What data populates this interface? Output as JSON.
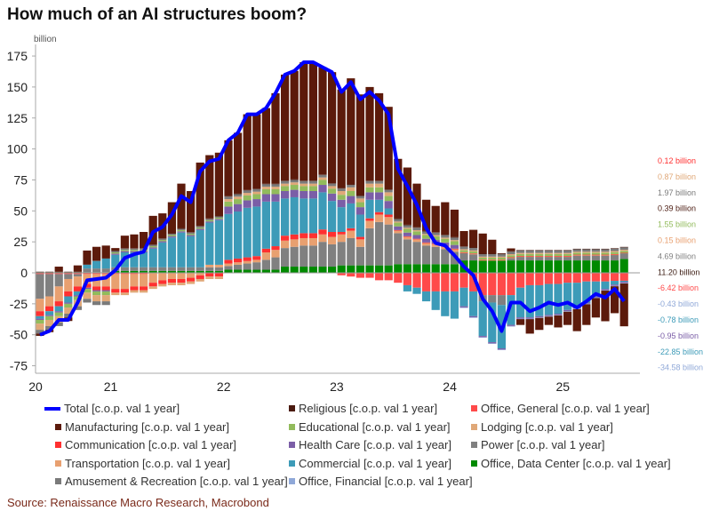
{
  "title": "How much of an AI structures boom?",
  "source": "Source: Renaissance Macro Research, Macrobond",
  "chart_data": {
    "type": "bar",
    "stacked": true,
    "title": "How much of an AI structures boom?",
    "ylabel": "billion",
    "ylim": [
      -75,
      175
    ],
    "yticks": [
      175,
      150,
      125,
      100,
      75,
      50,
      25,
      0,
      -25,
      -50,
      -75
    ],
    "x_start": "2020-05",
    "x_end": "2025-07",
    "frequency": "monthly",
    "xtick_labels": [
      {
        "label": "20",
        "month": "2020-01"
      },
      {
        "label": "21",
        "month": "2021-01"
      },
      {
        "label": "22",
        "month": "2022-01"
      },
      {
        "label": "23",
        "month": "2023-01"
      },
      {
        "label": "24",
        "month": "2024-01"
      },
      {
        "label": "25",
        "month": "2025-01"
      }
    ],
    "grid": false,
    "legend_placement": "bottom",
    "line": {
      "name": "Total [c.o.p. val 1 year]",
      "color": "#0000ff",
      "values": [
        -50,
        -47,
        -38,
        -38,
        -24,
        -6,
        -5,
        -4,
        2,
        12,
        15,
        17,
        33,
        37,
        47,
        62,
        57,
        82,
        90,
        92,
        107,
        113,
        128,
        128,
        133,
        145,
        160,
        163,
        170,
        170,
        166,
        162,
        146,
        154,
        140,
        146,
        139,
        128,
        84,
        70,
        55,
        36,
        24,
        22,
        14,
        5,
        -2,
        -21,
        -31,
        -47,
        -24,
        -24,
        -31,
        -28,
        -24,
        -26,
        -24,
        -28,
        -23,
        -17,
        -20,
        -13,
        -22.85
      ]
    },
    "series": [
      {
        "name": "Office, Data Center [c.o.p. val 1 year]",
        "color": "#008a00",
        "values": [
          0.5,
          0.5,
          0.5,
          0.5,
          0.5,
          0.5,
          0.5,
          0.5,
          1.5,
          1.5,
          1.5,
          1.5,
          1.5,
          1.5,
          1.5,
          1.5,
          1.5,
          1.5,
          1.5,
          1.5,
          2.5,
          2.5,
          2.5,
          2.5,
          2.5,
          2.5,
          5,
          5,
          5,
          5,
          5,
          5,
          6,
          6,
          6,
          6,
          6,
          6,
          7,
          7,
          7,
          7,
          7,
          7,
          7,
          10,
          10,
          10,
          10,
          10,
          10,
          10,
          10,
          10,
          10,
          10,
          10,
          10,
          10,
          10,
          10,
          10,
          11.2
        ]
      },
      {
        "name": "Office, General [c.o.p. val 1 year]",
        "color": "#ff4a4a",
        "values": [
          -1,
          -1,
          -1,
          -1,
          -1,
          -1,
          -1,
          -1,
          -1,
          -1,
          -1,
          -1,
          0,
          0,
          0,
          0,
          0,
          0,
          0,
          0,
          0,
          0,
          0,
          0,
          0,
          0,
          0,
          0,
          0,
          0,
          0,
          0,
          -2,
          -3,
          -4,
          -4,
          -6,
          -6,
          -8,
          -10,
          -12,
          -15,
          -15,
          -15,
          -15,
          -12,
          -15,
          -18,
          -18,
          -18,
          -18,
          -12,
          -10,
          -10,
          -9,
          -9,
          -8,
          -8,
          -7,
          -7,
          -7,
          -6.5,
          -6.42
        ]
      },
      {
        "name": "Power [c.o.p. val 1 year]",
        "color": "#808080",
        "values": [
          -20,
          -18,
          -10,
          -4,
          -2,
          3,
          3,
          3,
          3,
          3,
          3,
          3,
          3,
          3,
          3,
          3,
          3,
          3,
          3,
          3,
          3,
          4,
          5,
          6,
          8,
          10,
          15,
          16,
          17,
          17,
          20,
          18,
          19,
          22,
          15,
          30,
          35,
          33,
          25,
          20,
          18,
          15,
          14,
          12,
          10,
          6,
          5,
          -5,
          -6,
          -8,
          2,
          3,
          3,
          3,
          3,
          3,
          3,
          4,
          4,
          4,
          4,
          4.5,
          4.69
        ]
      },
      {
        "name": "Transportation [c.o.p. val 1 year]",
        "color": "#e8a070",
        "values": [
          -10,
          -8,
          -12,
          -10,
          -8,
          -8,
          -10,
          -10,
          -12,
          -12,
          -10,
          -10,
          -8,
          -6,
          -5,
          -5,
          -4,
          -2,
          2,
          2,
          2,
          2,
          2,
          2,
          6,
          6,
          6,
          6,
          6,
          6,
          6,
          6,
          6,
          6,
          6,
          6,
          6,
          6,
          2,
          2,
          2,
          2,
          2,
          2,
          2,
          0.15,
          0.15,
          0.15,
          0.15,
          0.15,
          0.15,
          0.15,
          0.15,
          0.15,
          0.15,
          0.15,
          0.15,
          0.15,
          0.15,
          0.15,
          0.15,
          0.15,
          0.15
        ]
      },
      {
        "name": "Communication [c.o.p. val 1 year]",
        "color": "#ff3030",
        "values": [
          -4,
          -4,
          -4,
          -4,
          -4,
          -3,
          -3,
          -3,
          -3,
          -3,
          -3,
          -3,
          -3,
          -3,
          -3,
          -3,
          -3,
          -3,
          -3,
          -3,
          3,
          3,
          3,
          3,
          3,
          3,
          4,
          4,
          4,
          4,
          4,
          4,
          2,
          2,
          2,
          2,
          2,
          2,
          0.5,
          0.5,
          0.5,
          0.5,
          0.5,
          0.5,
          0.5,
          0.5,
          0.5,
          0.5,
          0.5,
          0.5,
          0.5,
          0.5,
          0.5,
          0.5,
          0.5,
          0.5,
          0.5,
          0.5,
          0.5,
          0.5,
          0.5,
          0.5,
          0.12
        ]
      },
      {
        "name": "Commercial [c.o.p. val 1 year]",
        "color": "#3d9bb8",
        "values": [
          -2,
          -3,
          -4,
          -5,
          -3,
          3,
          6,
          8,
          10,
          12,
          12,
          12,
          15,
          20,
          24,
          28,
          25,
          30,
          34,
          36,
          37,
          38,
          40,
          40,
          38,
          36,
          30,
          30,
          28,
          28,
          30,
          25,
          20,
          20,
          18,
          15,
          10,
          5,
          0,
          -5,
          -5,
          -8,
          -15,
          -20,
          -22,
          -15,
          -20,
          -28,
          -32,
          -35,
          -24,
          -24,
          -26,
          -25,
          -25,
          -24,
          -22,
          -20,
          -17,
          -12,
          -6,
          -3,
          -0.78
        ]
      },
      {
        "name": "Health Care [c.o.p. val 1 year]",
        "color": "#7b5ea7",
        "values": [
          -1,
          -1,
          -1,
          -1,
          -1,
          -1,
          -1,
          -1,
          1,
          1,
          1,
          1,
          1,
          1,
          1,
          1,
          1,
          1,
          1,
          1,
          6,
          6,
          6,
          6,
          6,
          6,
          6,
          6,
          6,
          6,
          6,
          6,
          6,
          6,
          6,
          6,
          6,
          6,
          3,
          3,
          3,
          3,
          3,
          3,
          3,
          -0.95,
          -0.95,
          -0.95,
          -0.95,
          -0.95,
          -0.95,
          -0.95,
          -0.95,
          -0.95,
          -0.95,
          -0.95,
          -0.95,
          -0.95,
          -0.95,
          -0.95,
          -0.95,
          -0.95,
          -0.95
        ]
      },
      {
        "name": "Educational [c.o.p. val 1 year]",
        "color": "#92bb5c",
        "values": [
          -3,
          -3,
          -3,
          -3,
          -3,
          -3,
          -3,
          -3,
          1,
          1,
          1,
          1,
          1,
          1,
          1,
          1,
          1,
          1,
          1,
          1,
          4,
          4,
          4,
          4,
          4,
          4,
          4,
          4,
          4,
          4,
          4,
          4,
          4,
          4,
          4,
          4,
          4,
          4,
          3,
          3,
          3,
          3,
          3,
          3,
          3,
          1.55,
          1.55,
          1.55,
          1.55,
          1.55,
          1.55,
          1.55,
          1.55,
          1.55,
          1.55,
          1.55,
          1.55,
          1.55,
          1.55,
          1.55,
          1.55,
          1.55,
          1.55
        ]
      },
      {
        "name": "Lodging [c.o.p. val 1 year]",
        "color": "#e0a878",
        "values": [
          -5,
          -5,
          -5,
          -5,
          -5,
          -5,
          -5,
          -5,
          -2,
          -2,
          -2,
          -2,
          -2,
          -2,
          -2,
          -2,
          -2,
          -2,
          -2,
          -2,
          2,
          2,
          2,
          2,
          2,
          2,
          2,
          2,
          2,
          2,
          2,
          2,
          3,
          3,
          3,
          3,
          3,
          3,
          0.9,
          0.9,
          0.9,
          0.9,
          0.9,
          0.9,
          0.9,
          0.87,
          0.87,
          0.87,
          0.87,
          0.87,
          0.87,
          0.87,
          0.87,
          0.87,
          0.87,
          0.87,
          0.87,
          0.87,
          0.87,
          0.87,
          0.87,
          0.87,
          0.87
        ]
      },
      {
        "name": "Amusement & Recreation [c.o.p. val 1 year]",
        "color": "#7a7a7a",
        "values": [
          -3,
          -3,
          -3,
          -3,
          -3,
          -3,
          -3,
          -3,
          1,
          1,
          1,
          1,
          1,
          1,
          1,
          1,
          1,
          1,
          1,
          1,
          2,
          2,
          2,
          2,
          2,
          2,
          2,
          2,
          2,
          2,
          2,
          2,
          2,
          2,
          2,
          2,
          2,
          2,
          2,
          2,
          2,
          2,
          2,
          2,
          2,
          1.97,
          1.97,
          1.97,
          1.97,
          1.97,
          1.97,
          1.97,
          1.97,
          1.97,
          1.97,
          1.97,
          1.97,
          1.97,
          1.97,
          1.97,
          1.97,
          1.97,
          1.97
        ]
      },
      {
        "name": "Office, Financial [c.o.p. val 1 year]",
        "color": "#8fa8d8",
        "values": [
          0,
          0,
          0,
          0,
          0,
          0,
          0,
          0,
          0,
          0,
          0,
          0,
          0,
          0,
          0,
          0,
          0,
          0,
          0,
          0,
          0,
          0,
          0,
          0,
          0,
          0,
          0,
          0,
          0,
          0,
          0,
          0,
          0,
          0,
          0,
          0,
          0,
          0,
          0,
          0,
          0,
          0,
          0,
          0,
          0,
          -0.43,
          -0.43,
          -0.43,
          -0.43,
          -0.43,
          -0.43,
          -0.43,
          -0.43,
          -0.43,
          -0.43,
          -0.43,
          -0.43,
          -0.43,
          -0.43,
          -0.43,
          -0.43,
          -0.43,
          -0.43
        ]
      },
      {
        "name": "Religious [c.o.p. val 1 year]",
        "color": "#4a1a10",
        "values": [
          0.4,
          0.4,
          0.4,
          0.4,
          0.4,
          0.4,
          0.4,
          0.4,
          0.4,
          0.4,
          0.4,
          0.4,
          0.4,
          0.4,
          0.4,
          0.4,
          0.4,
          0.4,
          0.4,
          0.4,
          0.4,
          0.4,
          0.4,
          0.4,
          0.4,
          0.4,
          0.4,
          0.4,
          0.4,
          0.4,
          0.4,
          0.4,
          0.4,
          0.4,
          0.4,
          0.4,
          0.4,
          0.4,
          0.4,
          0.4,
          0.4,
          0.4,
          0.4,
          0.4,
          0.4,
          0.39,
          0.39,
          0.39,
          0.39,
          0.39,
          0.39,
          0.39,
          0.39,
          0.39,
          0.39,
          0.39,
          0.39,
          0.39,
          0.39,
          0.39,
          0.39,
          0.39,
          0.39
        ]
      },
      {
        "name": "Manufacturing [c.o.p. val 1 year]",
        "color": "#5c1a0b",
        "values": [
          -1.9,
          -1.9,
          4.1,
          -2.9,
          5.1,
          11.1,
          11.1,
          10.1,
          2.1,
          10.1,
          11.1,
          13.1,
          23.1,
          20.1,
          25.1,
          36.1,
          33.1,
          51.1,
          51.1,
          51.1,
          45.1,
          49.1,
          61.1,
          60.1,
          61.1,
          73.1,
          85.6,
          87.6,
          95.6,
          95.6,
          86.6,
          89.6,
          79.6,
          85.6,
          81.6,
          75.6,
          70.6,
          66.6,
          48.2,
          46.2,
          35.2,
          25.2,
          21.2,
          26.2,
          22.2,
          12.3,
          14.3,
          16.3,
          11.3,
          0.3,
          2.3,
          -4.7,
          -11.7,
          -9.7,
          -6.7,
          -9.7,
          -10.7,
          -17.7,
          -16.7,
          -15.7,
          -24.7,
          -21.7,
          -34.58
        ]
      }
    ],
    "last_value_labels": [
      {
        "text": "0.12 billion",
        "color": "#ff3030"
      },
      {
        "text": "0.87 billion",
        "color": "#e0a878"
      },
      {
        "text": "1.97 billion",
        "color": "#7a7a7a"
      },
      {
        "text": "0.39 billion",
        "color": "#4a1a10"
      },
      {
        "text": "1.55 billion",
        "color": "#92bb5c"
      },
      {
        "text": "0.15 billion",
        "color": "#e8a070"
      },
      {
        "text": "4.69 billion",
        "color": "#808080"
      },
      {
        "text": "11.20 billion",
        "color": "#3a1a10"
      },
      {
        "text": "-6.42 billion",
        "color": "#ff4a4a"
      },
      {
        "text": "-0.43 billion",
        "color": "#8fa8d8"
      },
      {
        "text": "-0.78 billion",
        "color": "#3d9bb8"
      },
      {
        "text": "-0.95 billion",
        "color": "#7b5ea7"
      },
      {
        "text": "-22.85 billion",
        "color": "#3d9bb8"
      },
      {
        "text": "-34.58 billion",
        "color": "#8fa8d8"
      }
    ],
    "legend": [
      {
        "label": "Total [c.o.p. val 1 year]",
        "color": "#0000ff",
        "kind": "line"
      },
      {
        "label": "Religious [c.o.p. val 1 year]",
        "color": "#4a1a10"
      },
      {
        "label": "Office, General [c.o.p. val 1 year]",
        "color": "#ff4a4a"
      },
      {
        "label": "Manufacturing [c.o.p. val 1 year]",
        "color": "#5c1a0b"
      },
      {
        "label": "Educational [c.o.p. val 1 year]",
        "color": "#92bb5c"
      },
      {
        "label": "Lodging [c.o.p. val 1 year]",
        "color": "#e0a878"
      },
      {
        "label": "Communication [c.o.p. val 1 year]",
        "color": "#ff3030"
      },
      {
        "label": "Health Care [c.o.p. val 1 year]",
        "color": "#7b5ea7"
      },
      {
        "label": "Power [c.o.p. val 1 year]",
        "color": "#808080"
      },
      {
        "label": "Transportation [c.o.p. val 1 year]",
        "color": "#e8a070"
      },
      {
        "label": "Commercial [c.o.p. val 1 year]",
        "color": "#3d9bb8"
      },
      {
        "label": "Office, Data Center [c.o.p. val 1 year]",
        "color": "#008a00"
      },
      {
        "label": "Amusement & Recreation [c.o.p. val 1 year]",
        "color": "#7a7a7a"
      },
      {
        "label": "Office, Financial [c.o.p. val 1 year]",
        "color": "#8fa8d8"
      }
    ]
  }
}
